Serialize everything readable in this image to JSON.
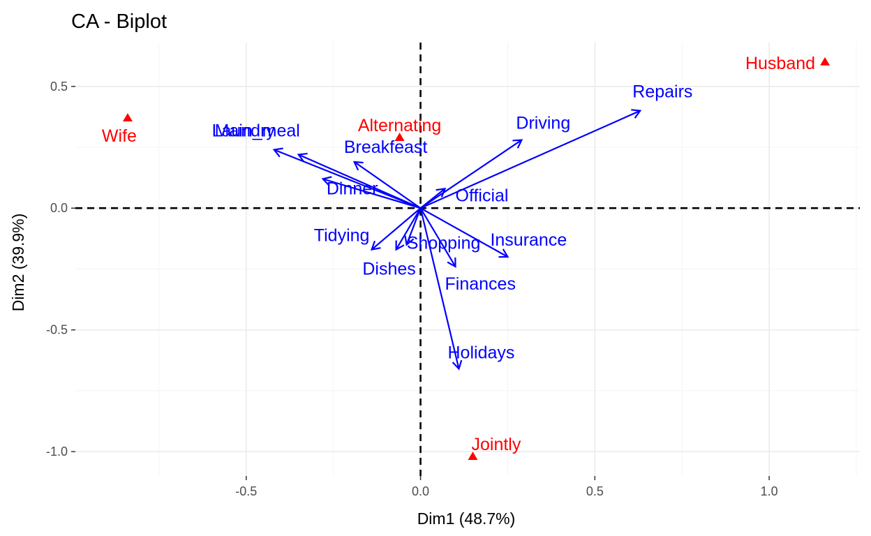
{
  "chart_data": {
    "type": "scatter",
    "title": "CA - Biplot",
    "xlabel": "Dim1 (48.7%)",
    "ylabel": "Dim2 (39.9%)",
    "xlim": [
      -0.99,
      1.26
    ],
    "ylim": [
      -1.1,
      0.68
    ],
    "x_ticks": [
      -0.5,
      0.0,
      0.5,
      1.0
    ],
    "x_tick_labels": [
      "-0.5",
      "0.0",
      "0.5",
      "1.0"
    ],
    "y_ticks": [
      -1.0,
      -0.5,
      0.0,
      0.5
    ],
    "y_tick_labels": [
      "-1.0",
      "-0.5",
      "0.0",
      "0.5"
    ],
    "reference_lines": {
      "x": 0,
      "y": 0,
      "style": "dashed"
    },
    "colors": {
      "columns": "#0000ff",
      "rows": "#ff0000"
    },
    "column_arrows": [
      {
        "name": "Laundry",
        "x": -0.42,
        "y": 0.24
      },
      {
        "name": "Main_meal",
        "x": -0.35,
        "y": 0.22
      },
      {
        "name": "Dinner",
        "x": -0.28,
        "y": 0.12
      },
      {
        "name": "Breakfeast",
        "x": -0.19,
        "y": 0.19
      },
      {
        "name": "Tidying",
        "x": -0.14,
        "y": -0.17
      },
      {
        "name": "Dishes",
        "x": -0.07,
        "y": -0.17
      },
      {
        "name": "Shopping",
        "x": -0.04,
        "y": -0.15
      },
      {
        "name": "Official",
        "x": 0.07,
        "y": 0.08
      },
      {
        "name": "Driving",
        "x": 0.29,
        "y": 0.28
      },
      {
        "name": "Finances",
        "x": 0.1,
        "y": -0.24
      },
      {
        "name": "Insurance",
        "x": 0.25,
        "y": -0.2
      },
      {
        "name": "Repairs",
        "x": 0.63,
        "y": 0.4
      },
      {
        "name": "Holidays",
        "x": 0.11,
        "y": -0.66
      }
    ],
    "row_points": [
      {
        "name": "Wife",
        "x": -0.84,
        "y": 0.37
      },
      {
        "name": "Alternating",
        "x": -0.06,
        "y": 0.29
      },
      {
        "name": "Jointly",
        "x": 0.15,
        "y": -1.02
      },
      {
        "name": "Husband",
        "x": 1.16,
        "y": 0.6
      }
    ]
  }
}
